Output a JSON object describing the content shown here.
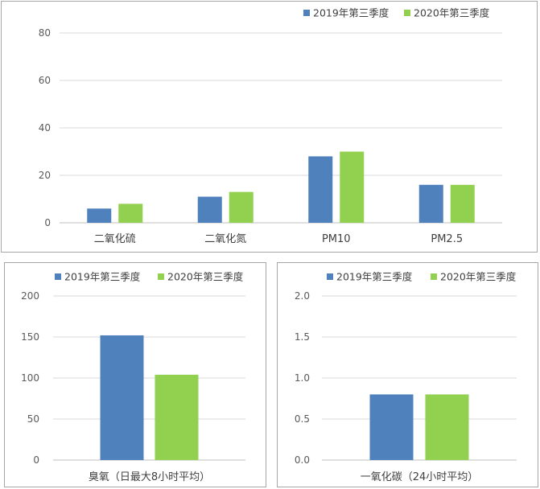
{
  "colors": {
    "series_2019": "#4f81bd",
    "series_2020": "#92d050"
  },
  "chart_data": [
    {
      "type": "bar",
      "categories": [
        "二氧化硫",
        "二氧化氮",
        "PM10",
        "PM2.5"
      ],
      "series": [
        {
          "name": "2019年第三季度",
          "values": [
            6,
            11,
            28,
            16
          ]
        },
        {
          "name": "2020年第三季度",
          "values": [
            8,
            13,
            30,
            16
          ]
        }
      ],
      "ylim": [
        0,
        80
      ],
      "yticks": [
        "0",
        "20",
        "40",
        "60",
        "80"
      ],
      "legend_position": "top-right",
      "grid": true
    },
    {
      "type": "bar",
      "categories": [
        "臭氧（日最大8小时平均）"
      ],
      "series": [
        {
          "name": "2019年第三季度",
          "values": [
            152
          ]
        },
        {
          "name": "2020年第三季度",
          "values": [
            104
          ]
        }
      ],
      "ylim": [
        0,
        200
      ],
      "yticks": [
        "0",
        "50",
        "100",
        "150",
        "200"
      ],
      "legend_position": "top",
      "grid": true
    },
    {
      "type": "bar",
      "categories": [
        "一氧化碳（24小时平均）"
      ],
      "series": [
        {
          "name": "2019年第三季度",
          "values": [
            0.8
          ]
        },
        {
          "name": "2020年第三季度",
          "values": [
            0.8
          ]
        }
      ],
      "ylim": [
        0,
        2
      ],
      "yticks": [
        "0.0",
        "0.5",
        "1.0",
        "1.5",
        "2.0"
      ],
      "legend_position": "top",
      "grid": true
    }
  ]
}
